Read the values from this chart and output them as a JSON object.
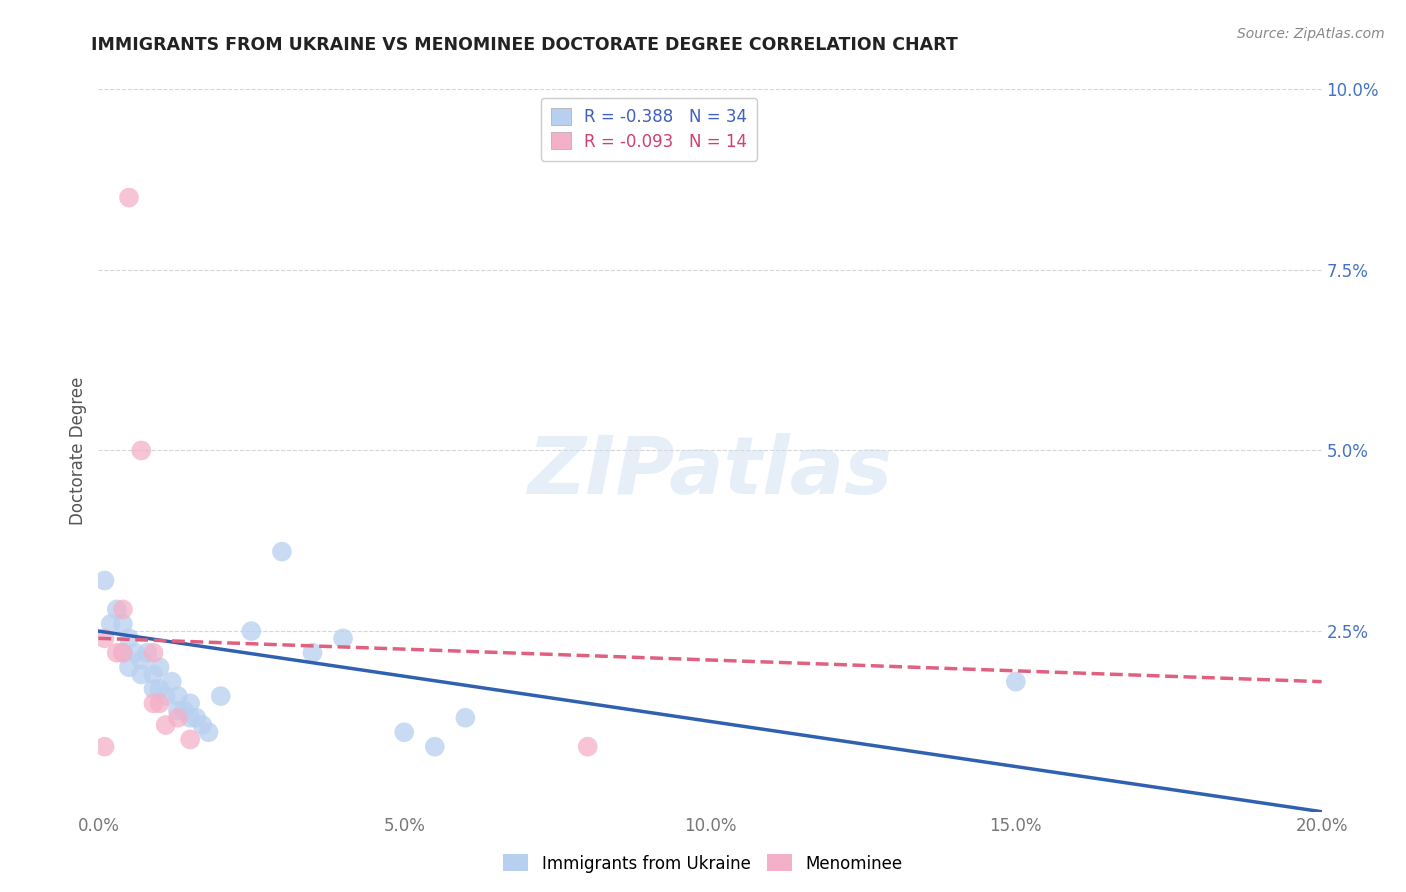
{
  "title": "IMMIGRANTS FROM UKRAINE VS MENOMINEE DOCTORATE DEGREE CORRELATION CHART",
  "source": "Source: ZipAtlas.com",
  "ylabel": "Doctorate Degree",
  "xlim": [
    0.0,
    0.2
  ],
  "ylim": [
    0.0,
    0.1
  ],
  "xtick_labels": [
    "0.0%",
    "5.0%",
    "10.0%",
    "15.0%",
    "20.0%"
  ],
  "xtick_vals": [
    0.0,
    0.05,
    0.1,
    0.15,
    0.2
  ],
  "ytick_vals": [
    0.0,
    0.025,
    0.05,
    0.075,
    0.1
  ],
  "ytick_labels_right": [
    "",
    "2.5%",
    "5.0%",
    "7.5%",
    "10.0%"
  ],
  "legend_entries": [
    {
      "label": "R = -0.388   N = 34",
      "facecolor": "#b8d0f0"
    },
    {
      "label": "R = -0.093   N = 14",
      "facecolor": "#f4b0c8"
    }
  ],
  "ukraine_color": "#b8d0f0",
  "ukraine_line_color": "#3060b0",
  "menominee_color": "#f4b0c8",
  "menominee_line_color": "#e06080",
  "ukraine_line_x0": 0.0,
  "ukraine_line_y0": 0.025,
  "ukraine_line_x1": 0.2,
  "ukraine_line_y1": 0.0,
  "menominee_line_x0": 0.0,
  "menominee_line_y0": 0.024,
  "menominee_line_x1": 0.2,
  "menominee_line_y1": 0.018,
  "ukraine_points": [
    [
      0.001,
      0.032
    ],
    [
      0.002,
      0.026
    ],
    [
      0.003,
      0.028
    ],
    [
      0.004,
      0.022
    ],
    [
      0.004,
      0.026
    ],
    [
      0.005,
      0.024
    ],
    [
      0.005,
      0.02
    ],
    [
      0.006,
      0.022
    ],
    [
      0.007,
      0.021
    ],
    [
      0.007,
      0.019
    ],
    [
      0.008,
      0.022
    ],
    [
      0.009,
      0.019
    ],
    [
      0.009,
      0.017
    ],
    [
      0.01,
      0.02
    ],
    [
      0.01,
      0.017
    ],
    [
      0.011,
      0.016
    ],
    [
      0.012,
      0.018
    ],
    [
      0.013,
      0.016
    ],
    [
      0.013,
      0.014
    ],
    [
      0.014,
      0.014
    ],
    [
      0.015,
      0.015
    ],
    [
      0.015,
      0.013
    ],
    [
      0.016,
      0.013
    ],
    [
      0.017,
      0.012
    ],
    [
      0.018,
      0.011
    ],
    [
      0.02,
      0.016
    ],
    [
      0.025,
      0.025
    ],
    [
      0.03,
      0.036
    ],
    [
      0.035,
      0.022
    ],
    [
      0.04,
      0.024
    ],
    [
      0.05,
      0.011
    ],
    [
      0.055,
      0.009
    ],
    [
      0.06,
      0.013
    ],
    [
      0.15,
      0.018
    ]
  ],
  "menominee_points": [
    [
      0.001,
      0.024
    ],
    [
      0.003,
      0.022
    ],
    [
      0.004,
      0.022
    ],
    [
      0.004,
      0.028
    ],
    [
      0.005,
      0.085
    ],
    [
      0.007,
      0.05
    ],
    [
      0.009,
      0.022
    ],
    [
      0.009,
      0.015
    ],
    [
      0.01,
      0.015
    ],
    [
      0.011,
      0.012
    ],
    [
      0.013,
      0.013
    ],
    [
      0.015,
      0.01
    ],
    [
      0.08,
      0.009
    ],
    [
      0.001,
      0.009
    ]
  ],
  "dot_size": 200,
  "watermark_text": "ZIPatlas",
  "watermark_zip_color": "#c8ddf5",
  "watermark_atlas_color": "#aac8e8",
  "background_color": "#ffffff",
  "grid_color": "#cccccc",
  "legend_label_color_ukraine": "#4060c0",
  "legend_label_color_menominee": "#d04070"
}
